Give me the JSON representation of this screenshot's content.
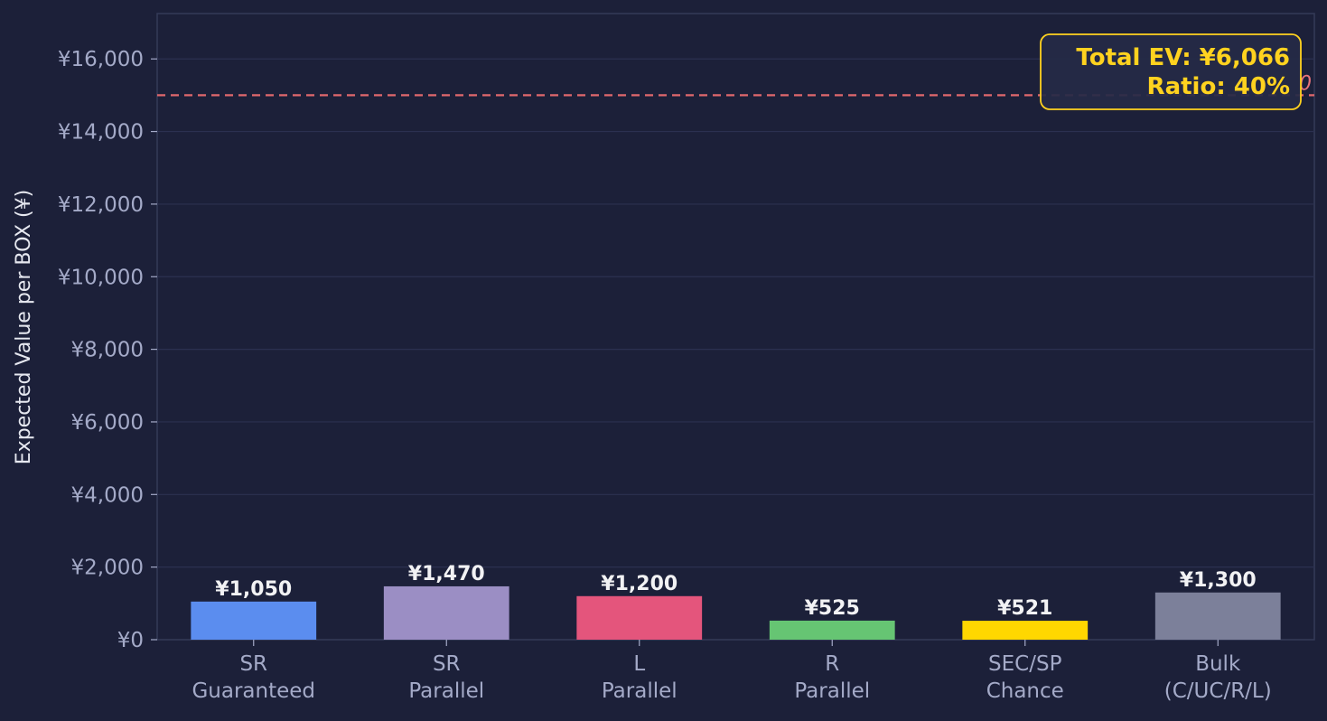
{
  "chart_data": {
    "type": "bar",
    "categories": [
      [
        "SR",
        "Guaranteed"
      ],
      [
        "SR",
        "Parallel"
      ],
      [
        "L",
        "Parallel"
      ],
      [
        "R",
        "Parallel"
      ],
      [
        "SEC/SP",
        "Chance"
      ],
      [
        "Bulk",
        "(C/UC/R/L)"
      ]
    ],
    "values": [
      1050,
      1470,
      1200,
      525,
      521,
      1300
    ],
    "value_labels": [
      "¥1,050",
      "¥1,470",
      "¥1,200",
      "¥525",
      "¥521",
      "¥1,300"
    ],
    "colors": [
      "#5b8def",
      "#9b8ec4",
      "#e4557c",
      "#66c573",
      "#ffd700",
      "#7c809a"
    ],
    "ylabel": "Expected Value per BOX (¥)",
    "xlabel": "",
    "ylim": [
      0,
      17250
    ],
    "yticks": [
      0,
      2000,
      4000,
      6000,
      8000,
      10000,
      12000,
      14000,
      16000
    ],
    "ytick_labels": [
      "¥0",
      "¥2,000",
      "¥4,000",
      "¥6,000",
      "¥8,000",
      "¥10,000",
      "¥12,000",
      "¥14,000",
      "¥16,000"
    ],
    "grid": true,
    "reference_line": {
      "value": 15000,
      "color": "#e0686d",
      "style": "dashed",
      "label_visible_fragment": "0"
    },
    "annotation": {
      "lines": [
        "Total EV: ¥6,066",
        "Ratio: 40%"
      ],
      "position": "top-right",
      "color": "#ffd21f"
    }
  }
}
